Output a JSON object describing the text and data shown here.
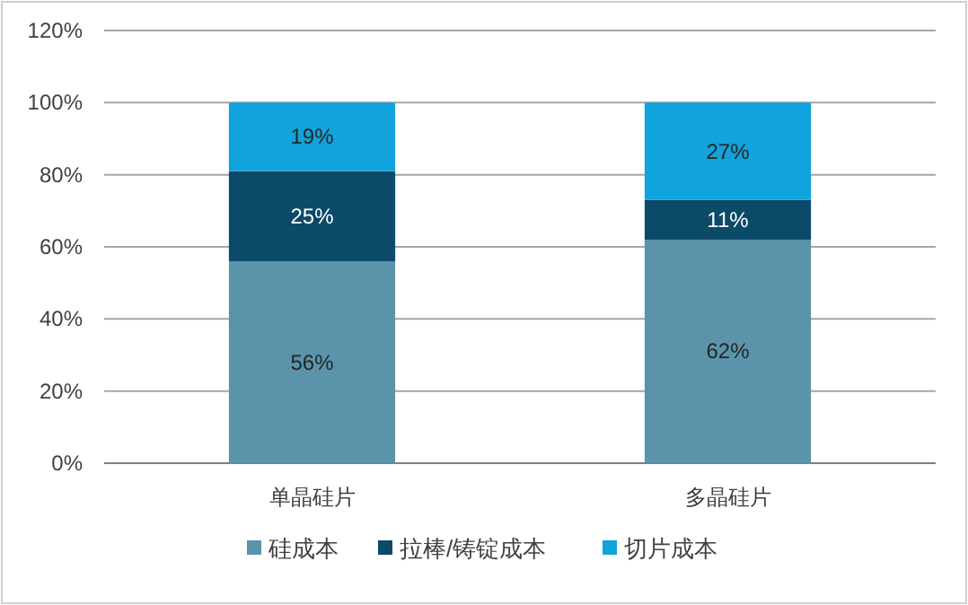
{
  "chart_data": {
    "type": "bar",
    "stacked": true,
    "categories": [
      "单晶硅片",
      "多晶硅片"
    ],
    "series": [
      {
        "name": "硅成本",
        "color": "#5b93ab",
        "values": [
          56,
          62
        ],
        "value_labels": [
          "56%",
          "62%"
        ]
      },
      {
        "name": "拉棒/铸锭成本",
        "color": "#0c4a69",
        "values": [
          25,
          11
        ],
        "value_labels": [
          "25%",
          "11%"
        ]
      },
      {
        "name": "切片成本",
        "color": "#11a3dc",
        "values": [
          19,
          27
        ],
        "value_labels": [
          "19%",
          "27%"
        ]
      }
    ],
    "ylim": [
      0,
      120
    ],
    "yticks": [
      {
        "value": 0,
        "label": "0%"
      },
      {
        "value": 20,
        "label": "20%"
      },
      {
        "value": 40,
        "label": "40%"
      },
      {
        "value": 60,
        "label": "60%"
      },
      {
        "value": 80,
        "label": "80%"
      },
      {
        "value": 100,
        "label": "100%"
      },
      {
        "value": 120,
        "label": "120%"
      }
    ],
    "grid": "y",
    "legend": "bottom"
  }
}
